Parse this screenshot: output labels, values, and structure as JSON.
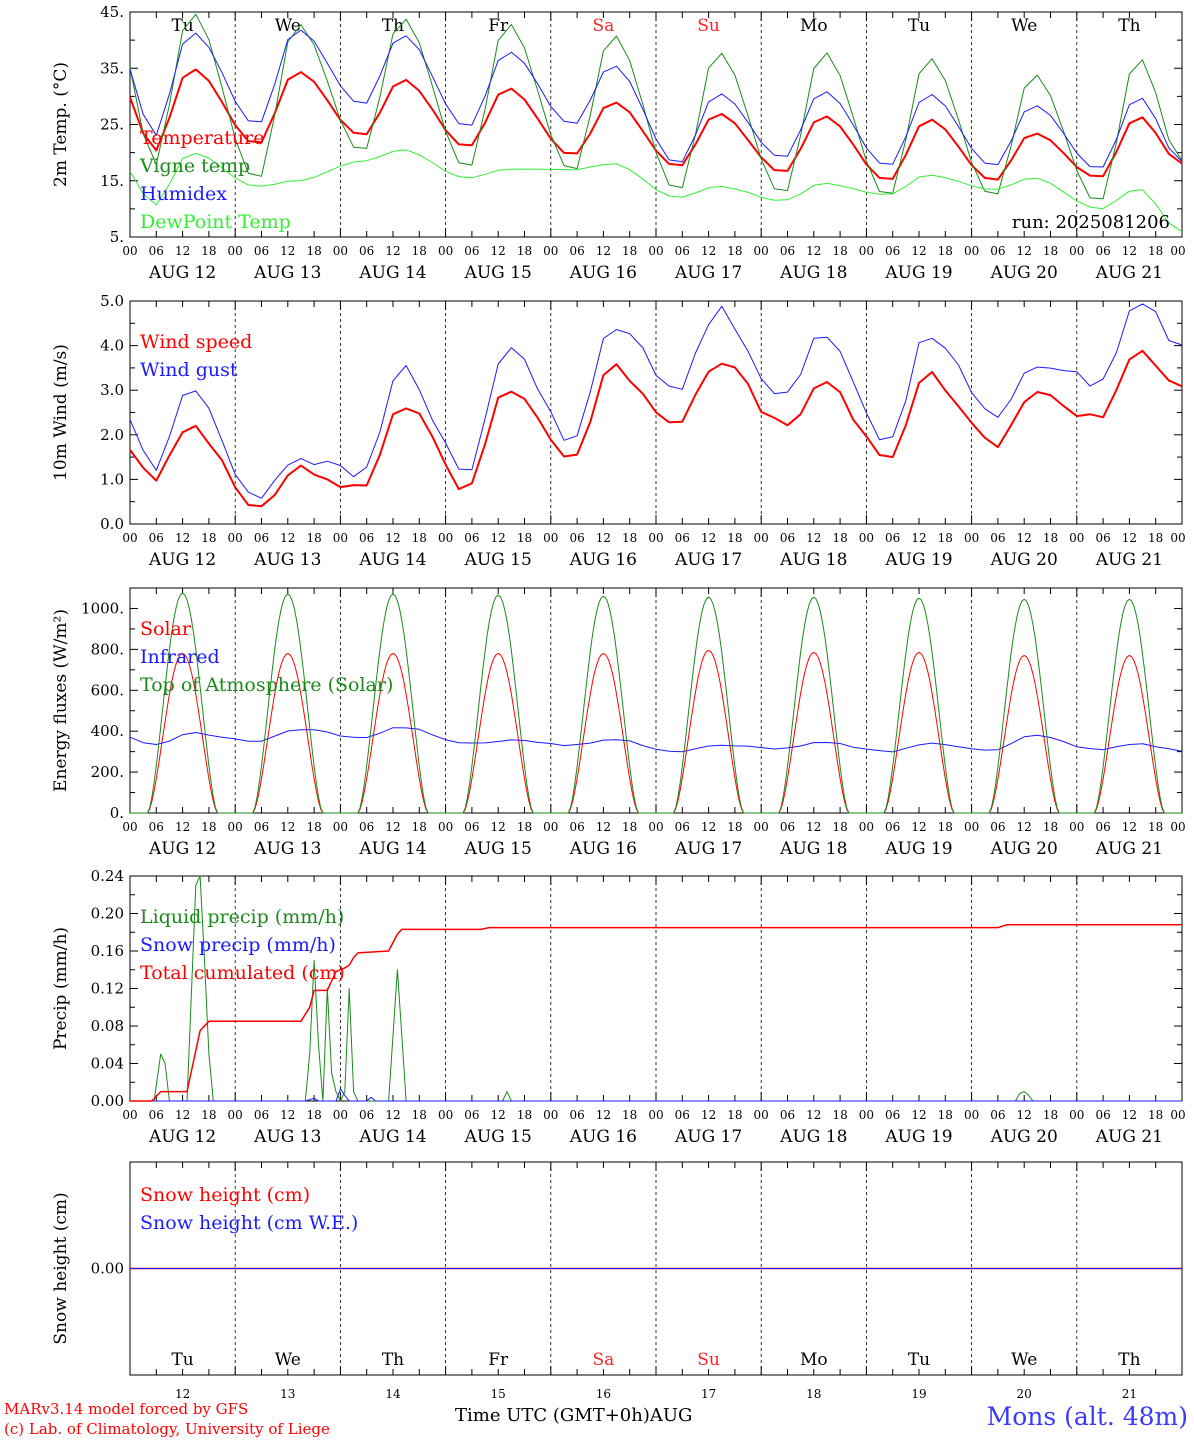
{
  "theme": {
    "red": "#ff0000",
    "blue": "#1a1aff",
    "green": "#1a8a1a",
    "lightgreen": "#33ee33",
    "weekend": "#ff2020"
  },
  "days": [
    "Tu",
    "We",
    "Th",
    "Fr",
    "Sa",
    "Su",
    "Mo",
    "Tu",
    "We",
    "Th"
  ],
  "weekend_days": [
    4,
    5
  ],
  "date_labels": [
    "AUG 12",
    "AUG 13",
    "AUG 14",
    "AUG 15",
    "AUG 16",
    "AUG 17",
    "AUG 18",
    "AUG 19",
    "AUG 20",
    "AUG 21"
  ],
  "hour_ticks": [
    "00",
    "06",
    "12",
    "18"
  ],
  "hour_final": "00",
  "bottom_day_numbers": [
    "12",
    "13",
    "14",
    "15",
    "16",
    "17",
    "18",
    "19",
    "20",
    "21"
  ],
  "footer": {
    "line1": "MARv3.14 model forced by GFS",
    "line2": "(c) Lab. of Climatology, University of Liege",
    "station": "Mons (alt. 48m)",
    "xtitle": "Time UTC (GMT+0h)AUG"
  },
  "chart_data": [
    {
      "type": "line",
      "ylabel": "2m Temp. (°C)",
      "ylim": [
        5,
        45
      ],
      "yticks": [
        5,
        15,
        25,
        35,
        45
      ],
      "ytick_labels": [
        "5.",
        "15.",
        "25.",
        "35.",
        "45."
      ],
      "annotation": "run: 2025081206",
      "series": [
        {
          "name": "Temperature",
          "color": "#ff0000",
          "width": 2,
          "daily": {
            "min": [
              20,
              21.5,
              23,
              21,
              19.5,
              17.5,
              16.5,
              15,
              15,
              15.5
            ],
            "max": [
              35,
              34.5,
              33,
              31.5,
              29,
              27,
              26.5,
              26,
              23.5,
              26.5
            ],
            "end": 18
          }
        },
        {
          "name": "Vigne temp",
          "color": "#1a8a1a",
          "width": 1,
          "daily": {
            "min": [
              17,
              15,
              20,
              17,
              16.5,
              13,
              12.5,
              12,
              12,
              11
            ],
            "max": [
              45,
              43,
              44,
              43,
              41,
              38,
              38,
              37,
              34,
              37
            ],
            "end": 18.5
          }
        },
        {
          "name": "Humidex",
          "color": "#1a1aff",
          "width": 1,
          "daily": {
            "min": [
              22.5,
              25,
              28.5,
              24.5,
              25,
              18,
              19,
              17.5,
              17.5,
              17
            ],
            "max": [
              41.5,
              42,
              41,
              38,
              35.5,
              30.5,
              31,
              30.5,
              28.5,
              30
            ],
            "end": 18.5
          }
        },
        {
          "name": "DewPoint Temp",
          "color": "#33ee33",
          "width": 1,
          "daily": {
            "min": [
              10.5,
              14,
              18.5,
              15.5,
              17,
              12,
              11.5,
              12.5,
              13.5,
              10
            ],
            "max": [
              20,
              15,
              20.5,
              17,
              18,
              14,
              14.5,
              16,
              15.5,
              13.5
            ],
            "end": 6
          }
        }
      ]
    },
    {
      "type": "line",
      "ylabel": "10m Wind (m/s)",
      "ylim": [
        0,
        5
      ],
      "yticks": [
        0,
        1,
        2,
        3,
        4,
        5
      ],
      "ytick_labels": [
        "0.0",
        "1.0",
        "2.0",
        "3.0",
        "4.0",
        "5.0"
      ],
      "series": [
        {
          "name": "Wind speed",
          "color": "#ff0000",
          "width": 2,
          "daily": {
            "min": [
              0.9,
              0.45,
              0.8,
              0.8,
              1.5,
              2.3,
              2.2,
              1.5,
              1.8,
              2.4
            ],
            "max": [
              2.2,
              1.2,
              2.7,
              3.1,
              3.5,
              3.7,
              3.1,
              3.3,
              2.9,
              3.9
            ],
            "end": 3.1
          }
        },
        {
          "name": "Wind gust",
          "color": "#1a1aff",
          "width": 1,
          "daily": {
            "min": [
              1.2,
              0.6,
              1.1,
              1.1,
              1.9,
              3.0,
              2.9,
              1.9,
              2.4,
              3.2
            ],
            "max": [
              3.0,
              1.5,
              3.5,
              4.0,
              4.5,
              4.8,
              4.2,
              4.3,
              3.6,
              5.0
            ],
            "end": 4.0
          }
        }
      ]
    },
    {
      "type": "line",
      "ylabel": "Energy fluxes (W/m²)",
      "ylim": [
        0,
        1100
      ],
      "yticks": [
        0,
        200,
        400,
        600,
        800,
        1000
      ],
      "ytick_labels": [
        "0.",
        "200.",
        "400.",
        "600.",
        "800.",
        "1000."
      ],
      "series": [
        {
          "name": "Solar",
          "color": "#ff0000",
          "width": 1,
          "solar_peak": [
            780,
            780,
            780,
            780,
            780,
            795,
            785,
            785,
            770,
            770
          ]
        },
        {
          "name": "Infrared",
          "color": "#1a1aff",
          "width": 1,
          "daily": {
            "min": [
              330,
              350,
              370,
              340,
              330,
              300,
              315,
              300,
              310,
              310
            ],
            "max": [
              390,
              410,
              420,
              355,
              360,
              330,
              345,
              340,
              380,
              340
            ],
            "end": 305
          }
        },
        {
          "name": "Top of Atmosphere (Solar)",
          "color": "#1a8a1a",
          "width": 1,
          "solar_peak": [
            1075,
            1070,
            1070,
            1065,
            1060,
            1055,
            1055,
            1050,
            1045,
            1045
          ]
        }
      ]
    },
    {
      "type": "line",
      "ylabel": "Precip (mm/h)",
      "ylim": [
        0,
        0.24
      ],
      "yticks": [
        0,
        0.04,
        0.08,
        0.12,
        0.16,
        0.2,
        0.24
      ],
      "ytick_labels": [
        "0.00",
        "0.04",
        "0.08",
        "0.12",
        "0.16",
        "0.20",
        "0.24"
      ],
      "series": [
        {
          "name": "Liquid precip (mm/h)",
          "color": "#1a8a1a",
          "width": 1,
          "points": [
            [
              0,
              0
            ],
            [
              5.5,
              0
            ],
            [
              7,
              0.05
            ],
            [
              8,
              0.04
            ],
            [
              9,
              0
            ],
            [
              13,
              0
            ],
            [
              15,
              0.23
            ],
            [
              16,
              0.24
            ],
            [
              17,
              0.15
            ],
            [
              18,
              0.05
            ],
            [
              19,
              0
            ],
            [
              40,
              0
            ],
            [
              41,
              0.05
            ],
            [
              42,
              0.15
            ],
            [
              43,
              0.06
            ],
            [
              44,
              0
            ],
            [
              45,
              0.12
            ],
            [
              46,
              0.03
            ],
            [
              47,
              0.01
            ],
            [
              48,
              0
            ],
            [
              49,
              0.01
            ],
            [
              50,
              0.12
            ],
            [
              51,
              0.01
            ],
            [
              52,
              0
            ],
            [
              59,
              0
            ],
            [
              61,
              0.14
            ],
            [
              62,
              0.07
            ],
            [
              63,
              0
            ],
            [
              85,
              0
            ],
            [
              86,
              0.01
            ],
            [
              87,
              0
            ],
            [
              202,
              0
            ],
            [
              203,
              0.008
            ],
            [
              204,
              0.01
            ],
            [
              205,
              0.006
            ],
            [
              206,
              0
            ],
            [
              240,
              0
            ]
          ]
        },
        {
          "name": "Snow precip (mm/h)",
          "color": "#1a1aff",
          "width": 1,
          "points": [
            [
              0,
              0
            ],
            [
              40,
              0
            ],
            [
              42,
              0.003
            ],
            [
              43,
              0
            ],
            [
              47,
              0
            ],
            [
              48,
              0.013
            ],
            [
              49,
              0.006
            ],
            [
              50,
              0
            ],
            [
              54,
              0
            ],
            [
              55,
              0.004
            ],
            [
              56,
              0
            ],
            [
              240,
              0
            ]
          ]
        },
        {
          "name": "Total cumulated (cm)",
          "color": "#ff0000",
          "width": 1.5,
          "points": [
            [
              0,
              0
            ],
            [
              5,
              0
            ],
            [
              7,
              0.01
            ],
            [
              13,
              0.01
            ],
            [
              16,
              0.075
            ],
            [
              18,
              0.085
            ],
            [
              39,
              0.085
            ],
            [
              41,
              0.1
            ],
            [
              42,
              0.118
            ],
            [
              45,
              0.118
            ],
            [
              46,
              0.128
            ],
            [
              47,
              0.138
            ],
            [
              49,
              0.142
            ],
            [
              50,
              0.145
            ],
            [
              51,
              0.153
            ],
            [
              52,
              0.158
            ],
            [
              59,
              0.16
            ],
            [
              61,
              0.178
            ],
            [
              62,
              0.183
            ],
            [
              80,
              0.183
            ],
            [
              82,
              0.185
            ],
            [
              198,
              0.185
            ],
            [
              200,
              0.188
            ],
            [
              240,
              0.188
            ]
          ]
        }
      ]
    },
    {
      "type": "line",
      "ylabel": "Snow height (cm)",
      "ylim": [
        -1,
        1
      ],
      "yticks": [
        0
      ],
      "ytick_labels": [
        "0.00"
      ],
      "series": [
        {
          "name": "Snow height (cm)",
          "color": "#ff0000",
          "width": 1.5,
          "constant": 0
        },
        {
          "name": "Snow height (cm W.E.)",
          "color": "#1a1aff",
          "width": 1,
          "constant": 0
        }
      ]
    }
  ]
}
